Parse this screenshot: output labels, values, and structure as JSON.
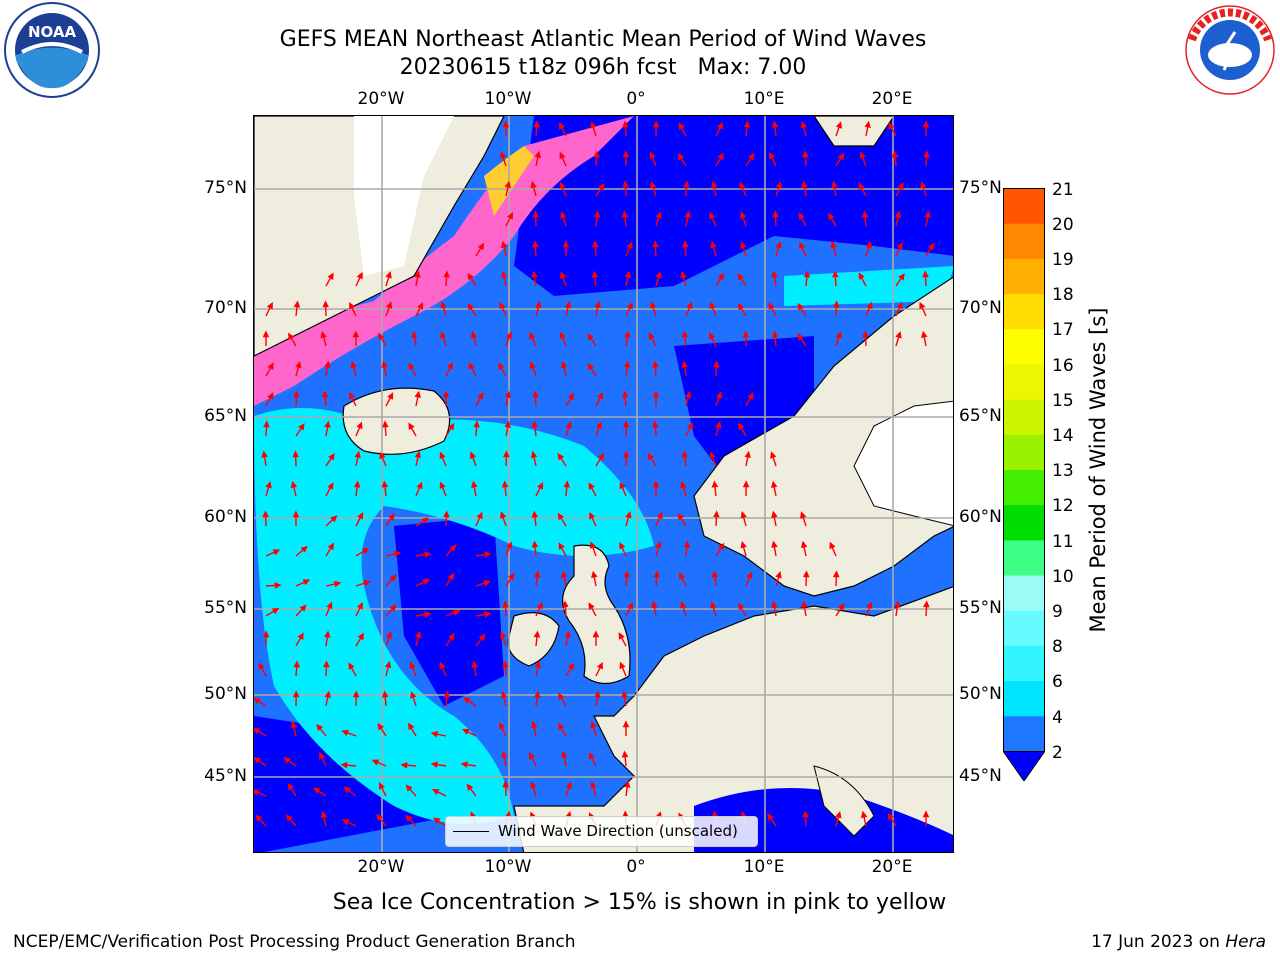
{
  "title": {
    "line1": "GEFS MEAN Northeast Atlantic Mean Period of Wind Waves",
    "line2": "20230615 t18z 096h fcst   Max: 7.00"
  },
  "axes": {
    "lon_labels": [
      "20°W",
      "10°W",
      "0°",
      "10°E",
      "20°E"
    ],
    "lat_labels": [
      "75°N",
      "70°N",
      "65°N",
      "60°N",
      "55°N",
      "50°N",
      "45°N"
    ]
  },
  "legend": {
    "label": "Wind Wave Direction (unscaled)"
  },
  "colorbar": {
    "label": "Mean Period of Wind Waves [s]",
    "ticks": [
      "21",
      "20",
      "19",
      "18",
      "17",
      "16",
      "15",
      "14",
      "13",
      "12",
      "11",
      "10",
      "9",
      "8",
      "6",
      "4",
      "2"
    ],
    "colors": [
      "#0000ff",
      "#1e78ff",
      "#00e5ff",
      "#33f5ff",
      "#66fbff",
      "#9bfcf5",
      "#3dff85",
      "#00dd00",
      "#44ee00",
      "#99f200",
      "#ccf500",
      "#eef500",
      "#ffff00",
      "#ffdd00",
      "#ffb000",
      "#ff8800",
      "#ff5500",
      "#ff2a00",
      "#ff0000"
    ]
  },
  "note": "Sea Ice Concentration > 15% is shown in pink to yellow",
  "footer": {
    "left": "NCEP/EMC/Verification Post Processing Product Generation Branch",
    "right_date": "17 Jun 2023 on ",
    "right_host": "Hera"
  },
  "logos": {
    "noaa_text": "NOAA",
    "nws_text": "NATIONAL WEATHER SERVICE"
  },
  "colors": {
    "ocean_deep": "#0000ff",
    "ocean_mid": "#1e72ff",
    "ocean_light": "#00eeff",
    "land": "#efedde",
    "ice": "#ff66cc",
    "arrow": "#ff0000"
  }
}
